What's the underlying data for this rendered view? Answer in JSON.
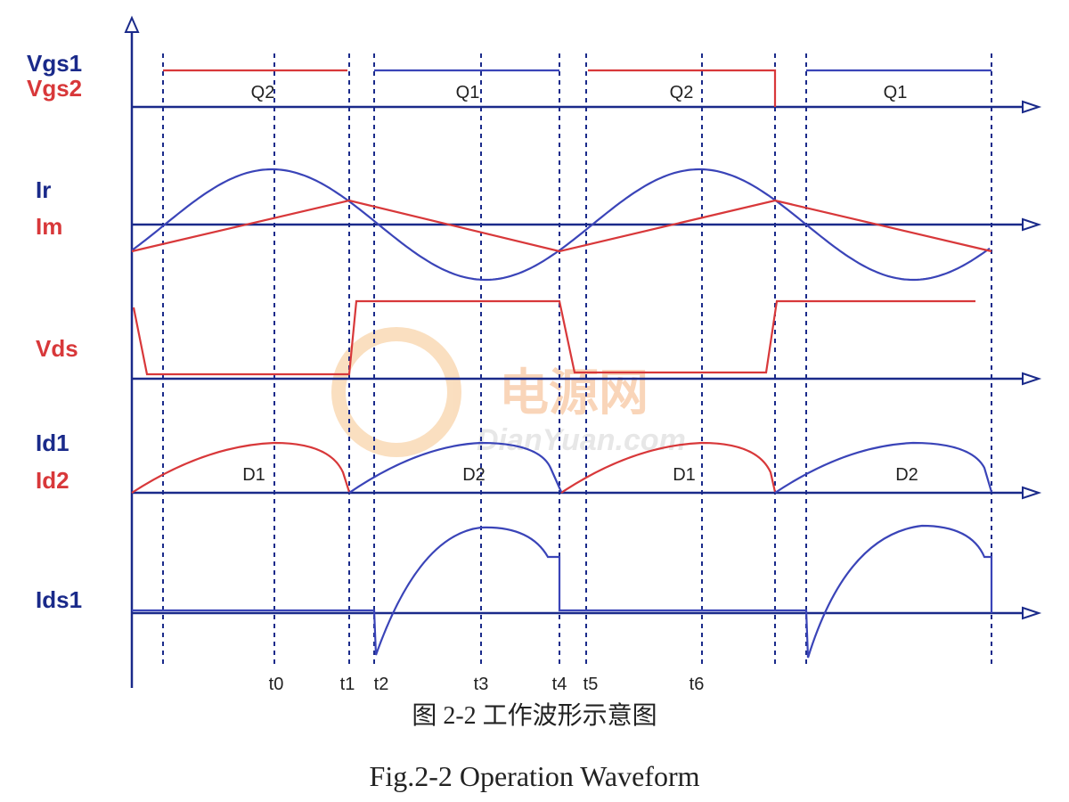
{
  "signal_labels": [
    "Vgs1",
    "Vgs2",
    "Ir",
    "Im",
    "Vds",
    "Id1",
    "Id2",
    "Ids1"
  ],
  "gate_phases": [
    "Q2",
    "Q1",
    "Q2",
    "Q1"
  ],
  "diode_phases": [
    "D1",
    "D2",
    "D1",
    "D2"
  ],
  "time_markers": [
    "t0",
    "t1",
    "t2",
    "t3",
    "t4",
    "t5",
    "t6"
  ],
  "watermark": {
    "logo": "电源网",
    "site": "DianYuan.com"
  },
  "caption": {
    "chinese": "图 2-2  工作波形示意图",
    "english": "Fig.2-2 Operation Waveform"
  }
}
